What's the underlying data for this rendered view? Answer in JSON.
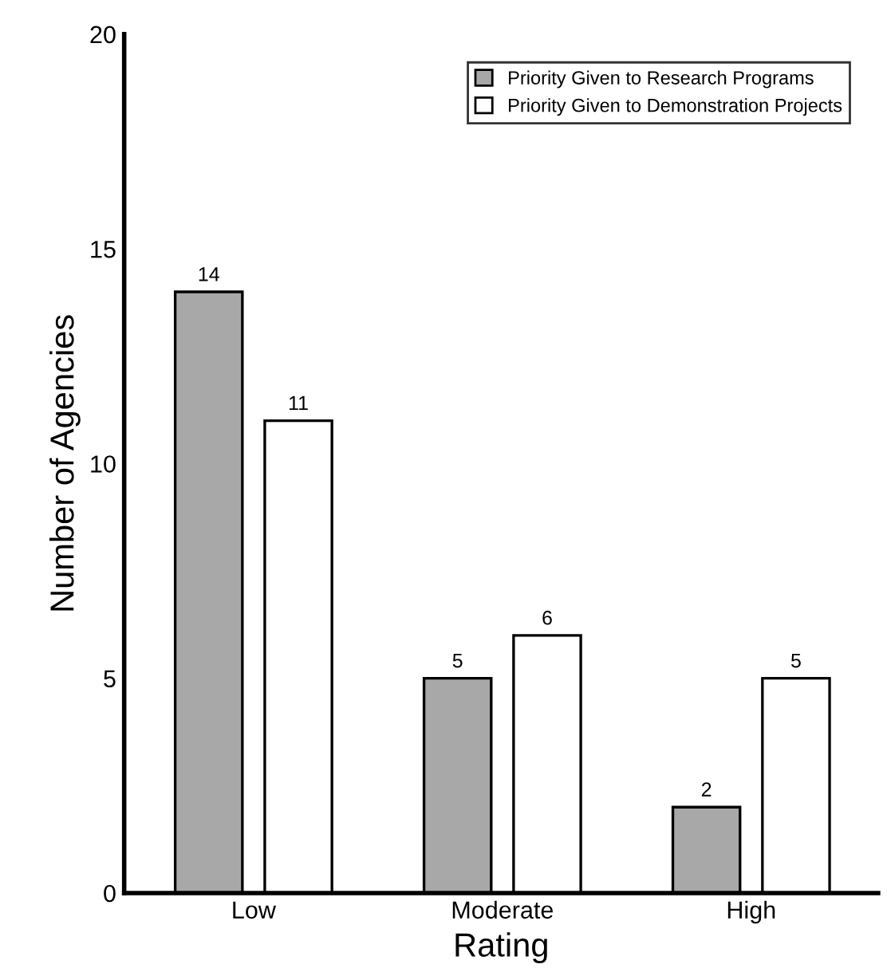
{
  "chart_data": {
    "type": "bar",
    "xlabel": "Rating",
    "ylabel": "Number of Agencies",
    "categories": [
      "Low",
      "Moderate",
      "High"
    ],
    "series": [
      {
        "name": "Priority Given to Research Programs",
        "color": "#a8a8a8",
        "values": [
          14,
          5,
          2
        ]
      },
      {
        "name": "Priority Given to Demonstration Projects",
        "color": "#ffffff",
        "values": [
          11,
          6,
          5
        ]
      }
    ],
    "ylim": [
      0,
      20
    ],
    "yticks": [
      0,
      5,
      10,
      15,
      20
    ],
    "grid": false,
    "legend": "top right",
    "data_labels": true
  }
}
